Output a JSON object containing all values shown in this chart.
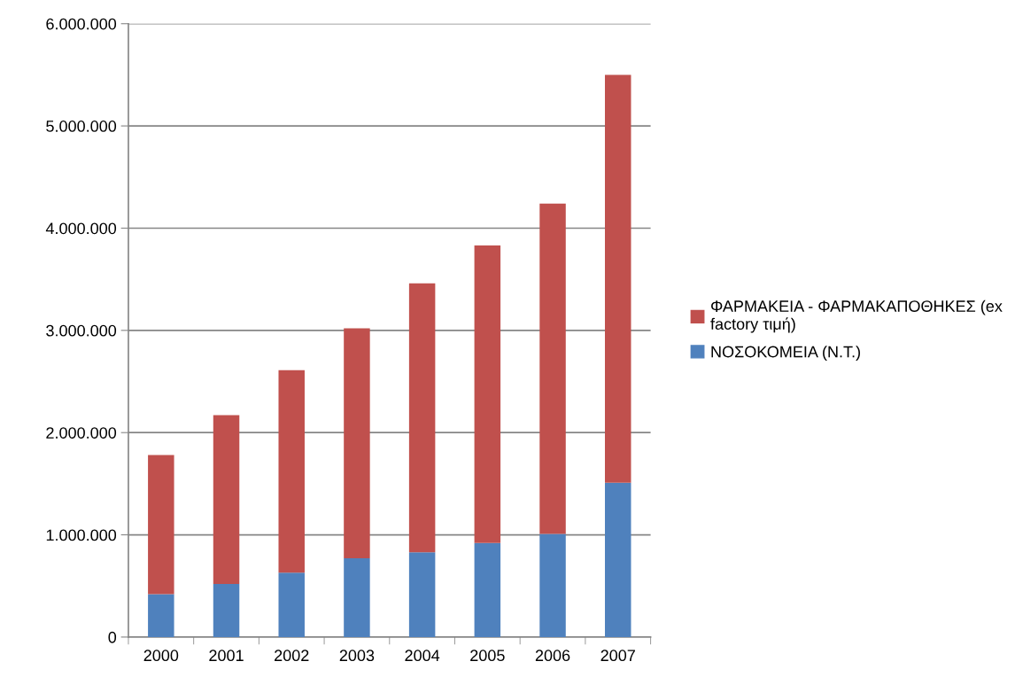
{
  "chart_data": {
    "type": "bar",
    "stacked": true,
    "categories": [
      "2000",
      "2001",
      "2002",
      "2003",
      "2004",
      "2005",
      "2006",
      "2007"
    ],
    "series": [
      {
        "name": "ΝΟΣΟΚΟΜΕΙΑ (Ν.Τ.)",
        "color": "#4f81bd",
        "values": [
          420000,
          520000,
          630000,
          770000,
          830000,
          920000,
          1010000,
          1510000
        ]
      },
      {
        "name": "ΦΑΡΜΑΚΕΙΑ - ΦΑΡΜΑΚΑΠΟΘΗΚΕΣ (ex factory τιμή)",
        "color": "#c0504d",
        "values": [
          1360000,
          1650000,
          1980000,
          2250000,
          2630000,
          2910000,
          3230000,
          3990000
        ]
      }
    ],
    "ylim": [
      0,
      6000000
    ],
    "yticks": [
      0,
      {
        "value": 1000000,
        "label": "1.000.000"
      },
      {
        "value": 2000000,
        "label": "2.000.000"
      },
      {
        "value": 3000000,
        "label": "3.000.000"
      },
      {
        "value": 4000000,
        "label": "4.000.000"
      },
      {
        "value": 5000000,
        "label": "5.000.000"
      },
      {
        "value": 6000000,
        "label": "6.000.000"
      }
    ],
    "grid": "y",
    "legend": "right"
  }
}
